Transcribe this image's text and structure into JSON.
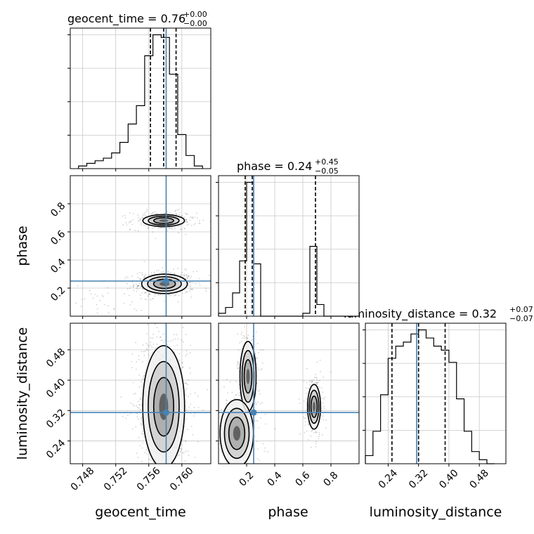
{
  "chart_data": {
    "type": "corner",
    "parameters": [
      "geocent_time",
      "phase",
      "luminosity_distance"
    ],
    "truths": {
      "geocent_time": 0.7581,
      "phase": 0.25,
      "luminosity_distance": 0.315
    },
    "truth_color": "#4682b4",
    "panel_titles": [
      {
        "param": "geocent_time",
        "text": "geocent_time = 0.76",
        "sup": "+0.00",
        "sub": "−0.00"
      },
      {
        "param": "phase",
        "text": "phase = 0.24",
        "sup": "+0.45",
        "sub": "−0.05"
      },
      {
        "param": "luminosity_distance",
        "text": "luminosity_distance = 0.32",
        "sup": "+0.07",
        "sub": "−0.07"
      }
    ],
    "axis_labels": {
      "x": [
        "geocent_time",
        "phase",
        "luminosity_distance"
      ],
      "y": [
        "phase",
        "luminosity_distance"
      ]
    },
    "axes": {
      "geocent_time": {
        "range": [
          0.7465,
          0.7635
        ],
        "ticks": [
          "0.748",
          "0.752",
          "0.756",
          "0.760"
        ],
        "tick_values": [
          0.748,
          0.752,
          0.756,
          0.76
        ]
      },
      "phase": {
        "range": [
          0.0,
          1.0
        ],
        "x_ticks": [
          "0.2",
          "0.4",
          "0.6",
          "0.8"
        ],
        "x_tick_values": [
          0.2,
          0.4,
          0.6,
          0.8
        ],
        "y_ticks": [
          "0.2",
          "0.4",
          "0.6",
          "0.8"
        ],
        "y_tick_values": [
          0.2,
          0.4,
          0.6,
          0.8
        ]
      },
      "luminosity_distance": {
        "range": [
          0.18,
          0.55
        ],
        "ticks": [
          "0.24",
          "0.32",
          "0.40",
          "0.48"
        ],
        "tick_values": [
          0.24,
          0.32,
          0.4,
          0.48
        ]
      }
    },
    "histograms": {
      "geocent_time": {
        "bin_edges": [
          0.7475,
          0.7485,
          0.7495,
          0.7505,
          0.7515,
          0.7525,
          0.7535,
          0.7545,
          0.7555,
          0.7565,
          0.7575,
          0.7585,
          0.7595,
          0.7605,
          0.7615,
          0.7625
        ],
        "counts": [
          1,
          2,
          3,
          4,
          6,
          10,
          17,
          24,
          43,
          51,
          50,
          36,
          13,
          5,
          1
        ],
        "quantiles": [
          0.7562,
          0.7578,
          0.7593
        ]
      },
      "phase": {
        "bin_edges": [
          0.0,
          0.05,
          0.1,
          0.15,
          0.2,
          0.25,
          0.3,
          0.35,
          0.4,
          0.45,
          0.5,
          0.55,
          0.6,
          0.65,
          0.7,
          0.75,
          0.8,
          0.85,
          0.9,
          0.95,
          1.0
        ],
        "counts": [
          1,
          3,
          8,
          19,
          46,
          18,
          0,
          0,
          0,
          0,
          0,
          0,
          1,
          24,
          4,
          0,
          0,
          0,
          0,
          0
        ],
        "quantiles": [
          0.19,
          0.24,
          0.69
        ]
      },
      "luminosity_distance": {
        "bin_edges": [
          0.18,
          0.2,
          0.22,
          0.24,
          0.26,
          0.28,
          0.3,
          0.32,
          0.34,
          0.36,
          0.38,
          0.4,
          0.42,
          0.44,
          0.46,
          0.48,
          0.5,
          0.52
        ],
        "counts": [
          2,
          8,
          17,
          26,
          29,
          30,
          32,
          33,
          31,
          29,
          28,
          25,
          16,
          8,
          3,
          1,
          0
        ],
        "quantiles": [
          0.25,
          0.32,
          0.39
        ]
      }
    },
    "density_modes": {
      "geocent_time_vs_phase": [
        {
          "x": 0.7579,
          "y": 0.23,
          "sx": 0.0012,
          "sy": 0.03,
          "w": 1.0
        },
        {
          "x": 0.7578,
          "y": 0.68,
          "sx": 0.0013,
          "sy": 0.022,
          "w": 0.55
        },
        {
          "x": 0.7505,
          "y": 0.13,
          "sx": 0.002,
          "sy": 0.05,
          "w": 0.08
        }
      ],
      "geocent_time_vs_luminosity_distance": [
        {
          "x": 0.7578,
          "y": 0.33,
          "sx": 0.0011,
          "sy": 0.07,
          "w": 1.0
        }
      ],
      "phase_vs_luminosity_distance": [
        {
          "x": 0.21,
          "y": 0.41,
          "sx": 0.025,
          "sy": 0.04,
          "w": 1.0
        },
        {
          "x": 0.68,
          "y": 0.33,
          "sx": 0.022,
          "sy": 0.028,
          "w": 0.75
        },
        {
          "x": 0.13,
          "y": 0.26,
          "sx": 0.06,
          "sy": 0.045,
          "w": 0.6
        }
      ]
    },
    "grid": true
  }
}
